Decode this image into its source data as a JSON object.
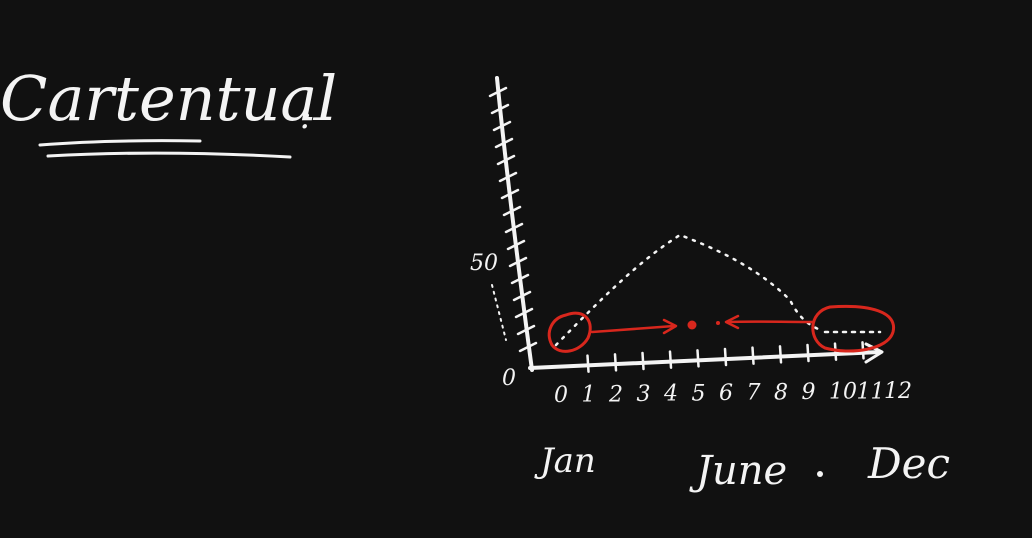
{
  "heading": {
    "text": "Cartentual",
    "suffix": ":-"
  },
  "axis": {
    "y_ticks": [
      "0",
      "50"
    ],
    "x_ticks": [
      "0",
      "1",
      "2",
      "3",
      "4",
      "5",
      "6",
      "7",
      "8",
      "9",
      "10",
      "11",
      "12"
    ]
  },
  "month_labels": {
    "start": "Jan",
    "middle": "June",
    "end": "Dec"
  },
  "colors": {
    "background": "#111111",
    "chalk": "#f4f4f4",
    "marker": "#d8271d"
  }
}
